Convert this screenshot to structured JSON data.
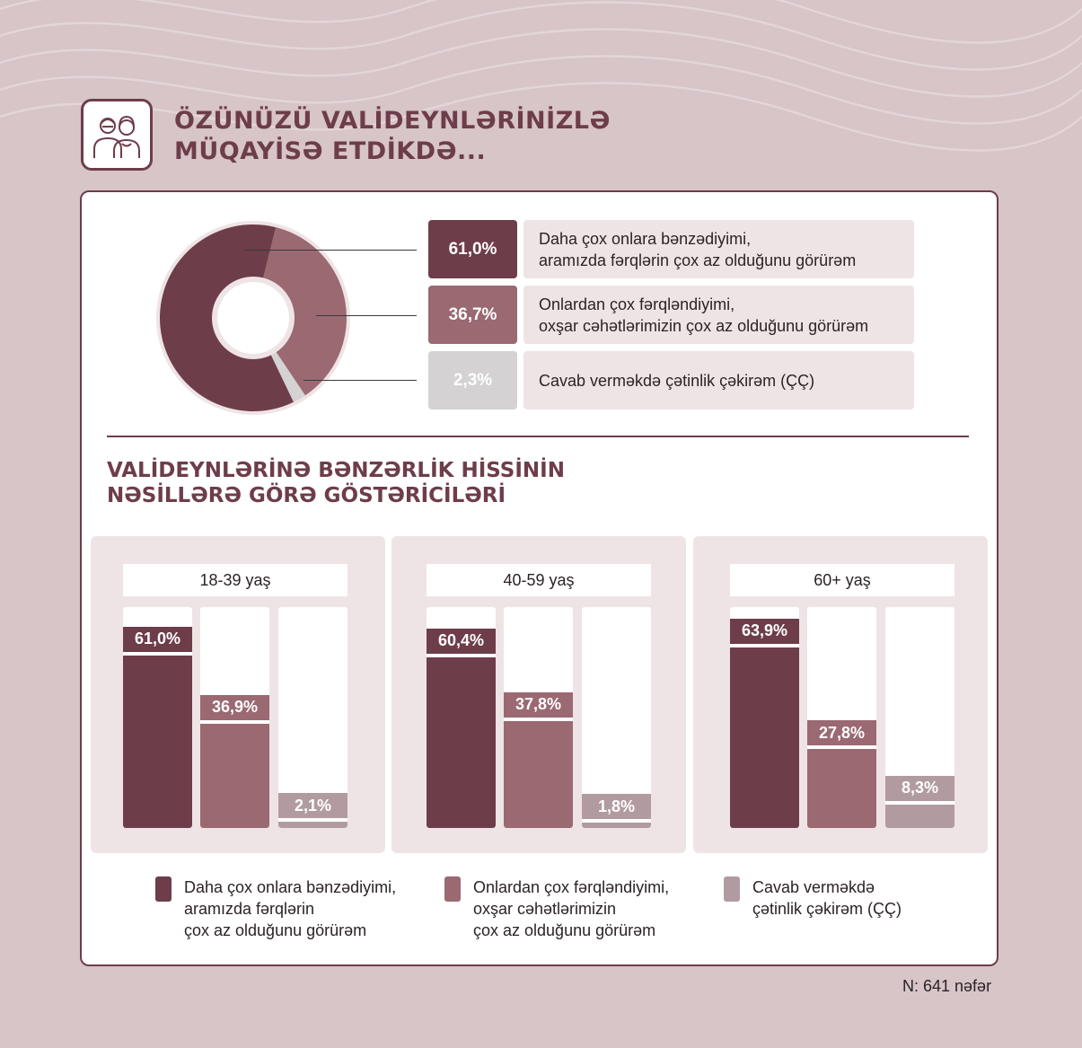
{
  "header": {
    "title_line1": "ÖZÜNÜZÜ VALİDEYNLƏRİNİZLƏ",
    "title_line2": "MÜQAYİSƏ ETDİKDƏ...",
    "icon": "elderly-couple-icon"
  },
  "colors": {
    "dark": "#6e3d4a",
    "medium": "#9a6972",
    "light_donut": "#d4d2d2",
    "light_bar": "#b19ba1",
    "panel_bg": "#efe4e5"
  },
  "overall": {
    "items": [
      {
        "pct": "61,0%",
        "line1": "Daha çox onlara bənzədiyimi,",
        "line2": "aramızda fərqlərin çox az olduğunu görürəm"
      },
      {
        "pct": "36,7%",
        "line1": "Onlardan çox fərqləndiyimi,",
        "line2": "oxşar cəhətlərimizin çox az olduğunu görürəm"
      },
      {
        "pct": "2,3%",
        "line1": "Cavab verməkdə çətinlik çəkirəm (ÇÇ)",
        "line2": ""
      }
    ]
  },
  "section2": {
    "title_line1": "VALİDEYNLƏRİNƏ BƏNZƏRLİK HİSSİNİN",
    "title_line2": "NƏSİLLƏRƏ GÖRƏ GÖSTƏRİCİLƏRİ"
  },
  "groups": [
    {
      "label": "18-39 yaş",
      "pcts": [
        "61,0%",
        "36,9%",
        "2,1%"
      ]
    },
    {
      "label": "40-59 yaş",
      "pcts": [
        "60,4%",
        "37,8%",
        "1,8%"
      ]
    },
    {
      "label": "60+ yaş",
      "pcts": [
        "63,9%",
        "27,8%",
        "8,3%"
      ]
    }
  ],
  "legend": [
    {
      "line1": "Daha çox onlara bənzədiyimi,",
      "line2": "aramızda fərqlərin",
      "line3": "çox az olduğunu görürəm"
    },
    {
      "line1": "Onlardan çox fərqləndiyimi,",
      "line2": "oxşar cəhətlərimizin",
      "line3": "çox az olduğunu görürəm"
    },
    {
      "line1": "Cavab verməkdə",
      "line2": "çətinlik çəkirəm (ÇÇ)",
      "line3": ""
    }
  ],
  "footnote": "N: 641 nəfər",
  "chart_data": [
    {
      "type": "pie",
      "categories": [
        "Daha çox onlara bənzədiyimi, aramızda fərqlərin çox az olduğunu görürəm",
        "Onlardan çox fərqləndiyimi, oxşar cəhətlərimizin çox az olduğunu görürəm",
        "Cavab verməkdə çətinlik çəkirəm (ÇÇ)"
      ],
      "values": [
        61.0,
        36.7,
        2.3
      ]
    },
    {
      "type": "bar",
      "categories": [
        "18-39 yaş",
        "40-59 yaş",
        "60+ yaş"
      ],
      "series": [
        {
          "name": "Daha çox onlara bənzədiyimi, aramızda fərqlərin çox az olduğunu görürəm",
          "values": [
            61.0,
            60.4,
            63.9
          ]
        },
        {
          "name": "Onlardan çox fərqləndiyimi, oxşar cəhətlərimizin çox az olduğunu görürəm",
          "values": [
            36.9,
            37.8,
            27.8
          ]
        },
        {
          "name": "Cavab verməkdə çətinlik çəkirəm (ÇÇ)",
          "values": [
            2.1,
            1.8,
            8.3
          ]
        }
      ],
      "legend": "bottom"
    }
  ]
}
